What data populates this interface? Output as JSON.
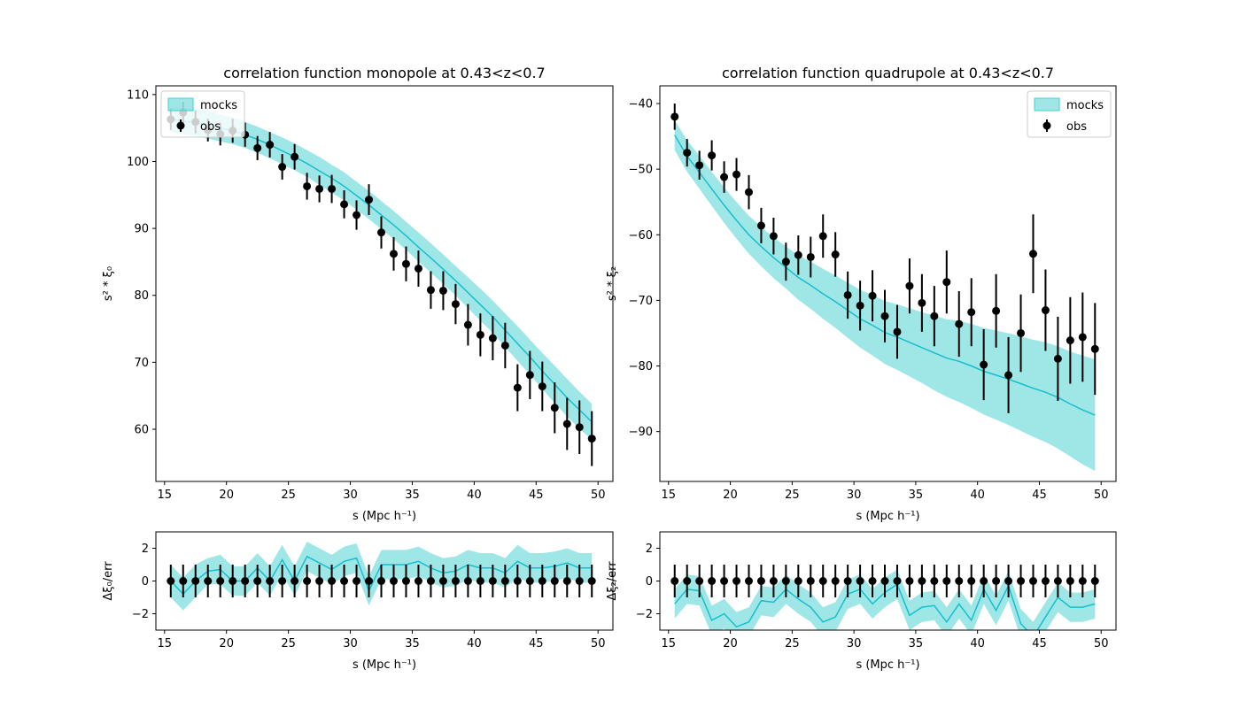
{
  "colors": {
    "band": "#40d0d0",
    "line": "#17becf",
    "obs": "#000000",
    "frame": "#000000"
  },
  "legend": {
    "mocks": "mocks",
    "obs": "obs"
  },
  "chart_data": [
    {
      "id": "monopole",
      "type": "line",
      "title": "correlation function monopole at 0.43<z<0.7",
      "xlabel": "s (Mpc h⁻¹)",
      "ylabel": "s² * ξ₀",
      "xlim": [
        14.3,
        51.2
      ],
      "ylim": [
        52.2,
        111.3
      ],
      "xticks": [
        15,
        20,
        25,
        30,
        35,
        40,
        45,
        50
      ],
      "yticks": [
        60,
        70,
        80,
        90,
        100,
        110
      ],
      "legend_position": "upper-left",
      "x": [
        15.5,
        16.5,
        17.5,
        18.5,
        19.5,
        20.5,
        21.5,
        22.5,
        23.5,
        24.5,
        25.5,
        26.5,
        27.5,
        28.5,
        29.5,
        30.5,
        31.5,
        32.5,
        33.5,
        34.5,
        35.5,
        36.5,
        37.5,
        38.5,
        39.5,
        40.5,
        41.5,
        42.5,
        43.5,
        44.5,
        45.5,
        46.5,
        47.5,
        48.5,
        49.5
      ],
      "mocks_mean": [
        106.3,
        106.0,
        105.8,
        105.5,
        105.0,
        104.6,
        104.0,
        103.3,
        102.5,
        101.6,
        100.7,
        99.7,
        98.6,
        97.5,
        96.3,
        94.9,
        93.5,
        92.0,
        90.5,
        88.9,
        87.2,
        85.6,
        83.9,
        82.2,
        80.4,
        78.6,
        76.8,
        74.8,
        72.8,
        70.8,
        68.7,
        66.7,
        64.7,
        62.9,
        61.1
      ],
      "mocks_upper": [
        108.2,
        108.0,
        107.9,
        107.6,
        107.0,
        106.6,
        105.9,
        105.2,
        104.4,
        103.6,
        102.7,
        101.7,
        100.7,
        99.5,
        98.4,
        97.0,
        95.6,
        94.1,
        92.6,
        91.0,
        89.4,
        87.8,
        86.1,
        84.4,
        82.7,
        81.0,
        79.2,
        77.3,
        75.4,
        73.4,
        71.4,
        69.5,
        67.5,
        65.6,
        63.8
      ],
      "mocks_lower": [
        104.4,
        104.1,
        103.8,
        103.4,
        103.0,
        102.6,
        102.0,
        101.3,
        100.5,
        99.6,
        98.7,
        97.7,
        96.5,
        95.3,
        94.2,
        92.8,
        91.4,
        89.9,
        88.4,
        86.8,
        85.0,
        83.4,
        81.7,
        80.0,
        78.1,
        76.2,
        74.4,
        72.3,
        70.2,
        68.2,
        66.0,
        63.9,
        61.9,
        60.1,
        58.4
      ],
      "obs_y": [
        106.3,
        107.3,
        105.9,
        104.7,
        104.1,
        104.6,
        104.0,
        102.0,
        102.5,
        99.2,
        100.7,
        96.3,
        95.9,
        95.9,
        93.6,
        92.0,
        94.3,
        89.4,
        86.2,
        84.7,
        84.0,
        80.8,
        80.7,
        78.7,
        75.6,
        74.1,
        73.6,
        72.5,
        66.2,
        68.1,
        66.4,
        63.2,
        60.8,
        60.3,
        58.6
      ],
      "obs_err": [
        1.6,
        1.6,
        1.7,
        1.7,
        1.7,
        1.8,
        1.8,
        1.8,
        1.9,
        1.9,
        1.9,
        2.0,
        2.0,
        2.1,
        2.1,
        2.2,
        2.3,
        2.4,
        2.5,
        2.6,
        2.7,
        2.8,
        2.9,
        3.0,
        3.1,
        3.2,
        3.3,
        3.4,
        3.5,
        3.6,
        3.7,
        3.8,
        3.9,
        4.0,
        4.1
      ]
    },
    {
      "id": "quadrupole",
      "type": "line",
      "title": "correlation function quadrupole at 0.43<z<0.7",
      "xlabel": "s (Mpc h⁻¹)",
      "ylabel": "s² * ξ₂",
      "xlim": [
        14.3,
        51.2
      ],
      "ylim": [
        -97.6,
        -37.3
      ],
      "xticks": [
        15,
        20,
        25,
        30,
        35,
        40,
        45,
        50
      ],
      "yticks": [
        -90,
        -80,
        -70,
        -60,
        -50,
        -40
      ],
      "legend_position": "upper-right",
      "x": [
        15.5,
        16.5,
        17.5,
        18.5,
        19.5,
        20.5,
        21.5,
        22.5,
        23.5,
        24.5,
        25.5,
        26.5,
        27.5,
        28.5,
        29.5,
        30.5,
        31.5,
        32.5,
        33.5,
        34.5,
        35.5,
        36.5,
        37.5,
        38.5,
        39.5,
        40.5,
        41.5,
        42.5,
        43.5,
        44.5,
        45.5,
        46.5,
        47.5,
        48.5,
        49.5
      ],
      "mocks_mean": [
        -44.8,
        -48.0,
        -50.5,
        -53.0,
        -55.5,
        -57.8,
        -60.0,
        -61.8,
        -63.5,
        -65.0,
        -66.5,
        -67.7,
        -69.0,
        -70.2,
        -71.5,
        -72.8,
        -73.8,
        -74.9,
        -75.6,
        -76.4,
        -77.2,
        -78.0,
        -78.8,
        -79.3,
        -80.0,
        -80.8,
        -81.4,
        -82.0,
        -82.7,
        -83.4,
        -84.0,
        -84.8,
        -85.8,
        -86.7,
        -87.5
      ],
      "mocks_upper": [
        -42.5,
        -45.6,
        -48.0,
        -50.4,
        -52.8,
        -55.0,
        -57.1,
        -58.8,
        -60.4,
        -61.8,
        -63.1,
        -64.1,
        -65.2,
        -66.2,
        -67.3,
        -68.4,
        -69.2,
        -70.1,
        -70.6,
        -71.2,
        -71.8,
        -72.3,
        -72.9,
        -73.1,
        -73.6,
        -74.2,
        -74.6,
        -75.0,
        -75.5,
        -76.0,
        -76.4,
        -77.0,
        -77.8,
        -78.4,
        -79.0
      ],
      "mocks_lower": [
        -47.1,
        -50.4,
        -53.0,
        -55.6,
        -58.2,
        -60.6,
        -62.9,
        -64.8,
        -66.6,
        -68.2,
        -69.9,
        -71.3,
        -72.8,
        -74.2,
        -75.7,
        -77.2,
        -78.4,
        -79.7,
        -80.6,
        -81.6,
        -82.6,
        -83.7,
        -84.7,
        -85.5,
        -86.4,
        -87.4,
        -88.2,
        -89.0,
        -89.9,
        -90.8,
        -91.6,
        -92.6,
        -93.8,
        -95.0,
        -96.0
      ],
      "obs_y": [
        -42.0,
        -47.5,
        -49.4,
        -47.9,
        -51.2,
        -50.8,
        -53.5,
        -58.6,
        -60.2,
        -64.1,
        -63.1,
        -63.4,
        -60.2,
        -63.0,
        -69.2,
        -70.8,
        -69.3,
        -72.4,
        -74.8,
        -67.8,
        -70.4,
        -72.4,
        -67.2,
        -73.6,
        -71.8,
        -79.8,
        -71.6,
        -81.4,
        -75.0,
        -62.9,
        -71.5,
        -78.9,
        -76.1,
        -75.6,
        -77.4
      ],
      "obs_err": [
        2.0,
        2.1,
        2.2,
        2.3,
        2.4,
        2.5,
        2.6,
        2.7,
        2.8,
        2.9,
        3.0,
        3.1,
        3.3,
        3.4,
        3.6,
        3.8,
        3.9,
        4.0,
        4.1,
        4.2,
        4.4,
        4.6,
        4.8,
        5.0,
        5.2,
        5.4,
        5.6,
        5.8,
        5.9,
        6.0,
        6.2,
        6.4,
        6.6,
        6.8,
        7.0
      ]
    },
    {
      "id": "monopole-residual",
      "type": "line",
      "title": "",
      "xlabel": "s (Mpc h⁻¹)",
      "ylabel": "Δξ₀/err",
      "xlim": [
        14.3,
        51.2
      ],
      "ylim": [
        -3,
        3
      ],
      "xticks": [
        15,
        20,
        25,
        30,
        35,
        40,
        45,
        50
      ],
      "yticks": [
        -2,
        0,
        2
      ],
      "x": [
        15.5,
        16.5,
        17.5,
        18.5,
        19.5,
        20.5,
        21.5,
        22.5,
        23.5,
        24.5,
        25.5,
        26.5,
        27.5,
        28.5,
        29.5,
        30.5,
        31.5,
        32.5,
        33.5,
        34.5,
        35.5,
        36.5,
        37.5,
        38.5,
        39.5,
        40.5,
        41.5,
        42.5,
        43.5,
        44.5,
        45.5,
        46.5,
        47.5,
        48.5,
        49.5
      ],
      "mocks_mean": [
        0.0,
        -0.8,
        0.0,
        0.6,
        0.7,
        0.0,
        0.0,
        0.8,
        0.0,
        1.3,
        0.0,
        1.5,
        1.1,
        0.7,
        1.2,
        1.4,
        -0.6,
        1.0,
        1.0,
        1.0,
        1.2,
        0.8,
        0.5,
        0.6,
        1.0,
        0.8,
        0.8,
        0.5,
        1.2,
        0.8,
        0.8,
        0.9,
        1.1,
        0.8,
        0.8
      ],
      "mocks_upper": [
        1.0,
        0.2,
        1.0,
        1.4,
        1.6,
        0.9,
        0.9,
        1.7,
        0.9,
        2.2,
        0.9,
        2.4,
        2.0,
        1.6,
        2.1,
        2.3,
        0.3,
        1.9,
        1.9,
        1.9,
        2.1,
        1.7,
        1.4,
        1.5,
        1.9,
        1.7,
        1.7,
        1.4,
        2.2,
        1.7,
        1.7,
        1.8,
        2.0,
        1.7,
        1.7
      ],
      "mocks_lower": [
        -1.0,
        -1.8,
        -1.0,
        -0.2,
        -0.2,
        -0.9,
        -0.9,
        -0.1,
        -0.9,
        0.4,
        -0.9,
        0.6,
        0.2,
        -0.2,
        0.3,
        0.5,
        -1.5,
        0.1,
        0.1,
        0.1,
        0.3,
        -0.1,
        -0.4,
        -0.3,
        0.1,
        -0.1,
        -0.1,
        -0.4,
        0.2,
        -0.1,
        -0.1,
        0.0,
        0.2,
        -0.1,
        -0.1
      ],
      "obs_y": [
        0,
        0,
        0,
        0,
        0,
        0,
        0,
        0,
        0,
        0,
        0,
        0,
        0,
        0,
        0,
        0,
        0,
        0,
        0,
        0,
        0,
        0,
        0,
        0,
        0,
        0,
        0,
        0,
        0,
        0,
        0,
        0,
        0,
        0,
        0
      ],
      "obs_err": [
        1,
        1,
        1,
        1,
        1,
        1,
        1,
        1,
        1,
        1,
        1,
        1,
        1,
        1,
        1,
        1,
        1,
        1,
        1,
        1,
        1,
        1,
        1,
        1,
        1,
        1,
        1,
        1,
        1,
        1,
        1,
        1,
        1,
        1,
        1
      ]
    },
    {
      "id": "quadrupole-residual",
      "type": "line",
      "title": "",
      "xlabel": "s (Mpc h⁻¹)",
      "ylabel": "Δξ₂/err",
      "xlim": [
        14.3,
        51.2
      ],
      "ylim": [
        -3,
        3
      ],
      "xticks": [
        15,
        20,
        25,
        30,
        35,
        40,
        45,
        50
      ],
      "yticks": [
        -2,
        0,
        2
      ],
      "x": [
        15.5,
        16.5,
        17.5,
        18.5,
        19.5,
        20.5,
        21.5,
        22.5,
        23.5,
        24.5,
        25.5,
        26.5,
        27.5,
        28.5,
        29.5,
        30.5,
        31.5,
        32.5,
        33.5,
        34.5,
        35.5,
        36.5,
        37.5,
        38.5,
        39.5,
        40.5,
        41.5,
        42.5,
        43.5,
        44.5,
        45.5,
        46.5,
        47.5,
        48.5,
        49.5
      ],
      "mocks_mean": [
        -1.4,
        -0.5,
        -0.6,
        -2.4,
        -2.0,
        -2.8,
        -2.5,
        -1.2,
        -1.3,
        -0.5,
        -1.1,
        -1.6,
        -2.5,
        -2.2,
        -0.8,
        -0.5,
        -1.4,
        -0.7,
        -0.2,
        -2.1,
        -1.6,
        -1.5,
        -2.5,
        -1.4,
        -2.4,
        -0.5,
        -1.8,
        -0.3,
        -2.6,
        -3.4,
        -2.2,
        -1.0,
        -1.6,
        -1.6,
        -1.4
      ],
      "mocks_upper": [
        -0.5,
        0.4,
        0.3,
        -1.5,
        -1.1,
        -1.9,
        -1.6,
        -0.3,
        -0.4,
        0.4,
        -0.2,
        -0.7,
        -1.6,
        -1.3,
        0.1,
        0.4,
        -0.5,
        0.2,
        0.7,
        -1.2,
        -0.7,
        -0.6,
        -1.6,
        -0.5,
        -1.5,
        0.4,
        -0.9,
        0.6,
        -1.7,
        -2.5,
        -1.3,
        -0.1,
        -0.7,
        -0.7,
        -0.5
      ],
      "mocks_lower": [
        -2.3,
        -1.4,
        -1.5,
        -3.3,
        -2.9,
        -3.7,
        -3.4,
        -2.1,
        -2.2,
        -1.4,
        -2.0,
        -2.5,
        -3.4,
        -3.1,
        -1.7,
        -1.4,
        -2.3,
        -1.6,
        -1.1,
        -3.0,
        -2.5,
        -2.4,
        -3.4,
        -2.3,
        -3.3,
        -1.4,
        -2.7,
        -1.2,
        -3.5,
        -4.3,
        -3.1,
        -1.9,
        -2.5,
        -2.5,
        -2.3
      ],
      "obs_y": [
        0,
        0,
        0,
        0,
        0,
        0,
        0,
        0,
        0,
        0,
        0,
        0,
        0,
        0,
        0,
        0,
        0,
        0,
        0,
        0,
        0,
        0,
        0,
        0,
        0,
        0,
        0,
        0,
        0,
        0,
        0,
        0,
        0,
        0,
        0
      ],
      "obs_err": [
        1,
        1,
        1,
        1,
        1,
        1,
        1,
        1,
        1,
        1,
        1,
        1,
        1,
        1,
        1,
        1,
        1,
        1,
        1,
        1,
        1,
        1,
        1,
        1,
        1,
        1,
        1,
        1,
        1,
        1,
        1,
        1,
        1,
        1,
        1
      ]
    }
  ]
}
